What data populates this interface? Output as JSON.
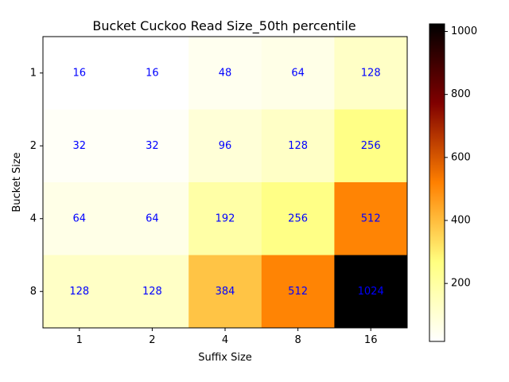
{
  "chart_data": {
    "type": "heatmap",
    "title": "Bucket Cuckoo Read Size_50th percentile",
    "xlabel": "Suffix Size",
    "ylabel": "Bucket Size",
    "x_categories": [
      "1",
      "2",
      "4",
      "8",
      "16"
    ],
    "y_categories": [
      "1",
      "2",
      "4",
      "8"
    ],
    "values": [
      [
        16,
        16,
        48,
        64,
        128
      ],
      [
        32,
        32,
        96,
        128,
        256
      ],
      [
        64,
        64,
        192,
        256,
        512
      ],
      [
        128,
        128,
        384,
        512,
        1024
      ]
    ],
    "colormap": "afmhot_r",
    "vmin": 16,
    "vmax": 1024,
    "annotation_color": "#0000ff",
    "colorbar": {
      "ticks": [
        200,
        400,
        600,
        800,
        1000
      ],
      "tick_labels": [
        "200",
        "400",
        "600",
        "800",
        "1000"
      ]
    }
  }
}
